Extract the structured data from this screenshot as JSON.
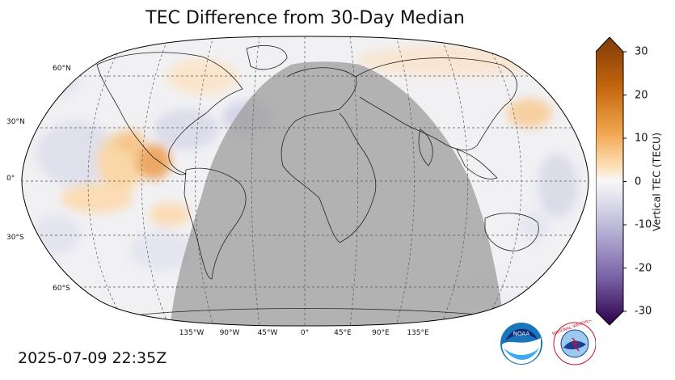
{
  "title": "TEC Difference from 30-Day Median",
  "timestamp": "2025-07-09 22:35Z",
  "lat_labels": [
    "60°N",
    "30°N",
    "0°",
    "30°S",
    "60°S"
  ],
  "lon_labels": [
    "135°W",
    "90°W",
    "45°W",
    "0°",
    "45°E",
    "90°E",
    "135°E"
  ],
  "colorbar": {
    "label": "Vertical TEC (TECU)",
    "ticks": [
      "30",
      "20",
      "10",
      "0",
      "-10",
      "-20",
      "-30"
    ],
    "min": -30,
    "max": 30
  },
  "logos": {
    "noaa_text": "NOAA",
    "nws_text": "NATIONAL WEATHER SERVICE"
  }
}
